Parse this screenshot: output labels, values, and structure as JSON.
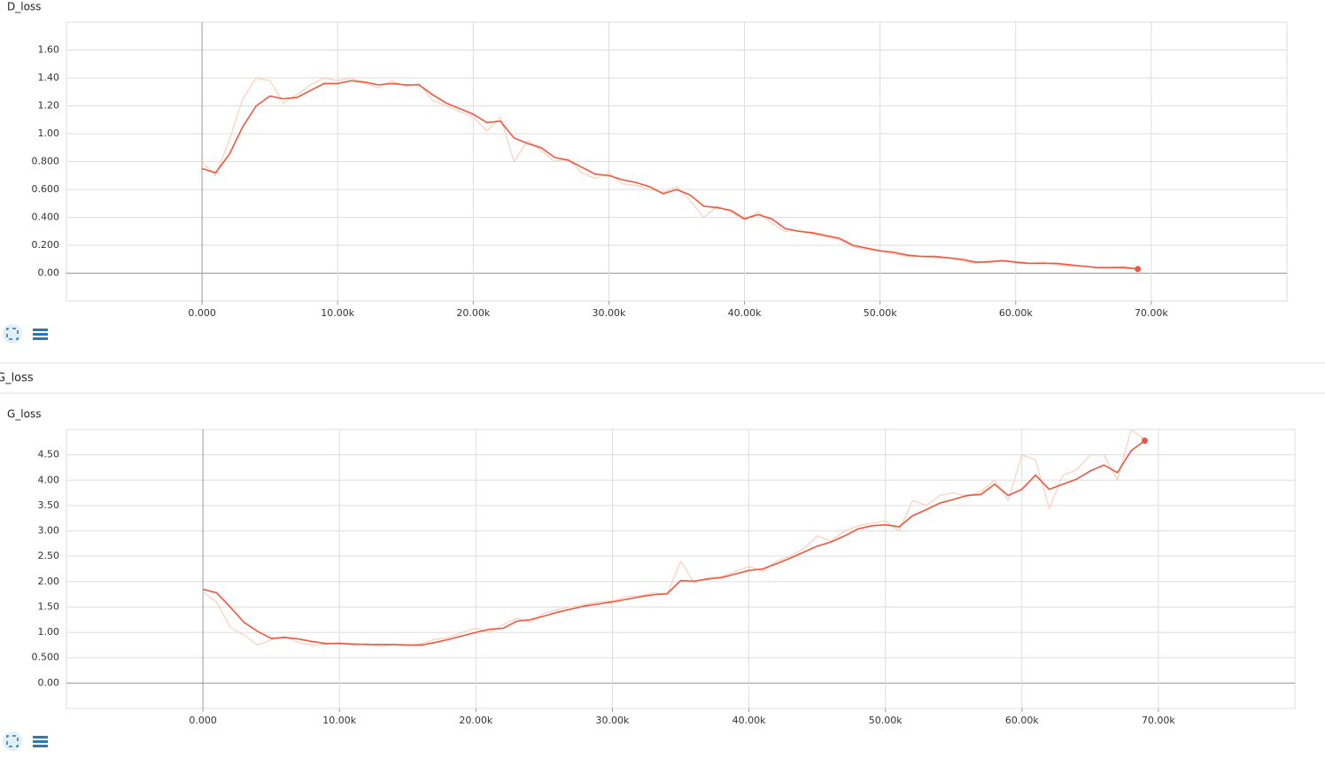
{
  "section": {
    "title": "G_loss"
  },
  "chart_data": [
    {
      "type": "line",
      "title": "D_loss",
      "x": [
        0,
        1000,
        2000,
        3000,
        4000,
        5000,
        6000,
        7000,
        8000,
        9000,
        10000,
        11000,
        12000,
        13000,
        14000,
        15000,
        16000,
        17000,
        18000,
        19000,
        20000,
        21000,
        22000,
        23000,
        24000,
        25000,
        26000,
        27000,
        28000,
        29000,
        30000,
        31000,
        32000,
        33000,
        34000,
        35000,
        36000,
        37000,
        38000,
        39000,
        40000,
        41000,
        42000,
        43000,
        44000,
        45000,
        46000,
        47000,
        48000,
        49000,
        50000,
        51000,
        52000,
        53000,
        54000,
        55000,
        56000,
        57000,
        58000,
        59000,
        60000,
        61000,
        62000,
        63000,
        64000,
        65000,
        66000,
        67000,
        68000,
        69000
      ],
      "series": [
        {
          "color": "#fbcfb8",
          "values": [
            0.8,
            0.7,
            0.95,
            1.25,
            1.4,
            1.38,
            1.22,
            1.28,
            1.35,
            1.4,
            1.38,
            1.4,
            1.36,
            1.33,
            1.38,
            1.34,
            1.36,
            1.24,
            1.2,
            1.16,
            1.12,
            1.02,
            1.12,
            0.8,
            0.95,
            0.88,
            0.8,
            0.82,
            0.72,
            0.68,
            0.72,
            0.64,
            0.63,
            0.6,
            0.58,
            0.62,
            0.52,
            0.4,
            0.48,
            0.44,
            0.38,
            0.44,
            0.36,
            0.3,
            0.31,
            0.28,
            0.26,
            0.24,
            0.19,
            0.17,
            0.16,
            0.14,
            0.12,
            0.12,
            0.11,
            0.11,
            0.09,
            0.07,
            0.09,
            0.09,
            0.07,
            0.07,
            0.08,
            0.06,
            0.05,
            0.05,
            0.04,
            0.04,
            0.05,
            0.03
          ]
        },
        {
          "color": "#f0563e",
          "values": [
            0.75,
            0.72,
            0.85,
            1.05,
            1.2,
            1.27,
            1.25,
            1.26,
            1.31,
            1.36,
            1.36,
            1.38,
            1.37,
            1.35,
            1.36,
            1.35,
            1.35,
            1.28,
            1.22,
            1.18,
            1.14,
            1.08,
            1.09,
            0.97,
            0.93,
            0.9,
            0.83,
            0.81,
            0.76,
            0.71,
            0.7,
            0.67,
            0.65,
            0.62,
            0.57,
            0.6,
            0.56,
            0.48,
            0.47,
            0.45,
            0.39,
            0.42,
            0.39,
            0.32,
            0.3,
            0.29,
            0.27,
            0.25,
            0.2,
            0.18,
            0.16,
            0.15,
            0.13,
            0.12,
            0.12,
            0.11,
            0.1,
            0.08,
            0.08,
            0.09,
            0.08,
            0.07,
            0.07,
            0.07,
            0.06,
            0.05,
            0.04,
            0.04,
            0.04,
            0.03
          ]
        }
      ],
      "xlim": [
        -10000,
        80000
      ],
      "ylim": [
        -0.2,
        1.8
      ],
      "xticks": [
        {
          "value": 0,
          "label": "0.000"
        },
        {
          "value": 10000,
          "label": "10.00k"
        },
        {
          "value": 20000,
          "label": "20.00k"
        },
        {
          "value": 30000,
          "label": "30.00k"
        },
        {
          "value": 40000,
          "label": "40.00k"
        },
        {
          "value": 50000,
          "label": "50.00k"
        },
        {
          "value": 60000,
          "label": "60.00k"
        },
        {
          "value": 70000,
          "label": "70.00k"
        }
      ],
      "yticks": [
        {
          "value": 0,
          "label": "0.00"
        },
        {
          "value": 0.2,
          "label": "0.200"
        },
        {
          "value": 0.4,
          "label": "0.400"
        },
        {
          "value": 0.6,
          "label": "0.600"
        },
        {
          "value": 0.8,
          "label": "0.800"
        },
        {
          "value": 1,
          "label": "1.00"
        },
        {
          "value": 1.2,
          "label": "1.20"
        },
        {
          "value": 1.4,
          "label": "1.40"
        },
        {
          "value": 1.6,
          "label": "1.60"
        }
      ],
      "grid": true
    },
    {
      "type": "line",
      "title": "G_loss",
      "x": [
        0,
        1000,
        2000,
        3000,
        4000,
        5000,
        6000,
        7000,
        8000,
        9000,
        10000,
        11000,
        12000,
        13000,
        14000,
        15000,
        16000,
        17000,
        18000,
        19000,
        20000,
        21000,
        22000,
        23000,
        24000,
        25000,
        26000,
        27000,
        28000,
        29000,
        30000,
        31000,
        32000,
        33000,
        34000,
        35000,
        36000,
        37000,
        38000,
        39000,
        40000,
        41000,
        42000,
        43000,
        44000,
        45000,
        46000,
        47000,
        48000,
        49000,
        50000,
        51000,
        52000,
        53000,
        54000,
        55000,
        56000,
        57000,
        58000,
        59000,
        60000,
        61000,
        62000,
        63000,
        64000,
        65000,
        66000,
        67000,
        68000,
        69000
      ],
      "series": [
        {
          "color": "#fbcfb8",
          "values": [
            1.8,
            1.6,
            1.1,
            0.95,
            0.75,
            0.85,
            0.92,
            0.8,
            0.75,
            0.76,
            0.8,
            0.74,
            0.78,
            0.72,
            0.76,
            0.74,
            0.78,
            0.86,
            0.9,
            1.0,
            1.08,
            1.0,
            1.15,
            1.28,
            1.2,
            1.38,
            1.45,
            1.5,
            1.55,
            1.6,
            1.62,
            1.7,
            1.72,
            1.78,
            1.75,
            2.4,
            1.98,
            2.08,
            2.1,
            2.2,
            2.3,
            2.2,
            2.4,
            2.5,
            2.65,
            2.9,
            2.8,
            3.0,
            3.1,
            3.15,
            3.2,
            3.0,
            3.6,
            3.5,
            3.7,
            3.75,
            3.68,
            3.78,
            4.0,
            3.6,
            4.5,
            4.4,
            3.45,
            4.1,
            4.2,
            4.5,
            4.5,
            4.0,
            5.0,
            4.8
          ]
        },
        {
          "color": "#f0563e",
          "values": [
            1.85,
            1.78,
            1.5,
            1.2,
            1.02,
            0.88,
            0.9,
            0.87,
            0.82,
            0.78,
            0.78,
            0.77,
            0.76,
            0.76,
            0.76,
            0.75,
            0.75,
            0.8,
            0.86,
            0.93,
            1.0,
            1.06,
            1.08,
            1.22,
            1.25,
            1.32,
            1.4,
            1.46,
            1.52,
            1.56,
            1.6,
            1.65,
            1.7,
            1.74,
            1.76,
            2.02,
            2.01,
            2.05,
            2.08,
            2.15,
            2.22,
            2.25,
            2.35,
            2.46,
            2.58,
            2.7,
            2.78,
            2.9,
            3.04,
            3.1,
            3.12,
            3.08,
            3.3,
            3.42,
            3.55,
            3.62,
            3.7,
            3.72,
            3.92,
            3.7,
            3.82,
            4.1,
            3.82,
            3.92,
            4.02,
            4.18,
            4.3,
            4.15,
            4.58,
            4.78
          ]
        }
      ],
      "xlim": [
        -10000,
        80000
      ],
      "ylim": [
        -0.5,
        5
      ],
      "xticks": [
        {
          "value": 0,
          "label": "0.000"
        },
        {
          "value": 10000,
          "label": "10.00k"
        },
        {
          "value": 20000,
          "label": "20.00k"
        },
        {
          "value": 30000,
          "label": "30.00k"
        },
        {
          "value": 40000,
          "label": "40.00k"
        },
        {
          "value": 50000,
          "label": "50.00k"
        },
        {
          "value": 60000,
          "label": "60.00k"
        },
        {
          "value": 70000,
          "label": "70.00k"
        }
      ],
      "yticks": [
        {
          "value": 0,
          "label": "0.00"
        },
        {
          "value": 0.5,
          "label": "0.500"
        },
        {
          "value": 1,
          "label": "1.00"
        },
        {
          "value": 1.5,
          "label": "1.50"
        },
        {
          "value": 2,
          "label": "2.00"
        },
        {
          "value": 2.5,
          "label": "2.50"
        },
        {
          "value": 3,
          "label": "3.00"
        },
        {
          "value": 3.5,
          "label": "3.50"
        },
        {
          "value": 4,
          "label": "4.00"
        },
        {
          "value": 4.5,
          "label": "4.50"
        }
      ],
      "grid": true
    }
  ]
}
